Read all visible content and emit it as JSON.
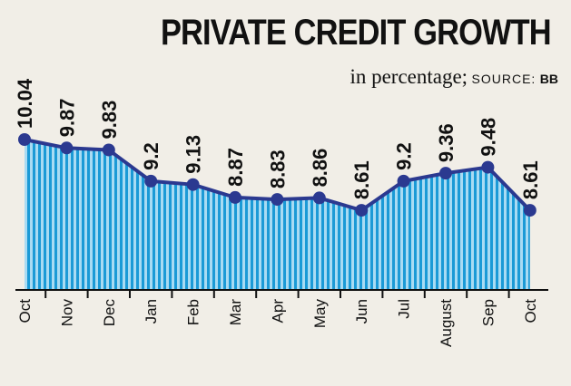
{
  "header": {
    "title": "PRIVATE CREDIT GROWTH",
    "subtitle": "in percentage;",
    "source_label": "SOURCE:",
    "source_value": "BB"
  },
  "colors": {
    "line": "#2b3990",
    "point": "#2b3990",
    "area_stripe_dark": "#1b9ad6",
    "area_stripe_light": "#a9dbf3",
    "axis": "#111111"
  },
  "chart_data": {
    "type": "area",
    "title": "PRIVATE CREDIT GROWTH",
    "subtitle": "in percentage; SOURCE: BB",
    "xlabel": "",
    "ylabel": "",
    "categories": [
      "Oct",
      "Nov",
      "Dec",
      "Jan",
      "Feb",
      "Mar",
      "Apr",
      "May",
      "Jun",
      "Jul",
      "August",
      "Sep",
      "Oct"
    ],
    "series": [
      {
        "values": [
          10.04,
          9.87,
          9.83,
          9.2,
          9.13,
          8.87,
          8.83,
          8.86,
          8.61,
          9.2,
          9.36,
          9.48,
          8.61
        ]
      }
    ],
    "data_labels": [
      "10.04",
      "9.87",
      "9.83",
      "9.2",
      "9.13",
      "8.87",
      "8.83",
      "8.86",
      "8.61",
      "9.2",
      "9.36",
      "9.48",
      "8.61"
    ],
    "ylim": [
      7.0,
      10.04
    ],
    "grid": false,
    "legend": "none"
  }
}
